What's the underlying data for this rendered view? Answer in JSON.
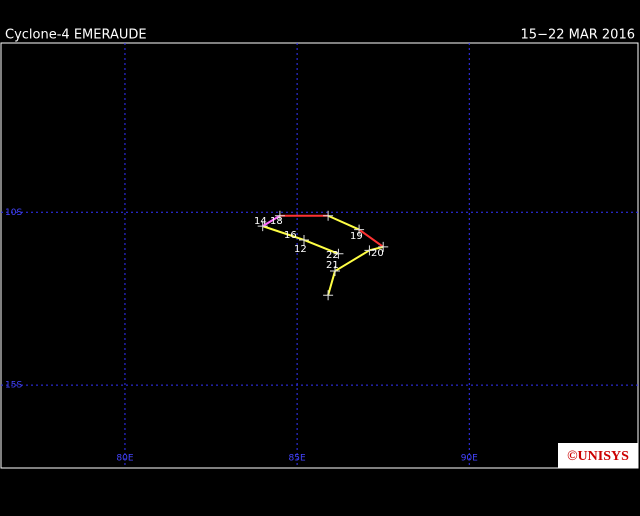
{
  "header": {
    "title": "Cyclone-4 EMERAUDE",
    "dates": "15−22 MAR 2016"
  },
  "map": {
    "xlim": [
      76.4,
      94.9
    ],
    "ylim": [
      5.1,
      17.4
    ],
    "xticks": [
      {
        "value": 80,
        "label": "80E"
      },
      {
        "value": 85,
        "label": "85E"
      },
      {
        "value": 90,
        "label": "90E"
      }
    ],
    "yticks": [
      {
        "value": 10,
        "label": "10S"
      },
      {
        "value": 15,
        "label": "15S"
      }
    ],
    "track": {
      "lon": [
        86.2,
        85.2,
        84.0,
        84.5,
        85.9,
        86.8,
        87.5,
        87.1,
        86.1,
        85.9
      ],
      "lat": [
        11.2,
        10.8,
        10.4,
        10.1,
        10.1,
        10.5,
        11.0,
        11.1,
        11.7,
        12.4
      ],
      "segment_colors": [
        "#ffff44",
        "#ffff44",
        "#ff66ff",
        "#ff3333",
        "#ffff44",
        "#ff3333",
        "#ffff44",
        "#ffff44",
        "#ffff44"
      ]
    },
    "labels": [
      "14",
      "18",
      "16",
      "12",
      "19",
      "20",
      "22",
      "21"
    ]
  },
  "logo": "©UNISYS"
}
